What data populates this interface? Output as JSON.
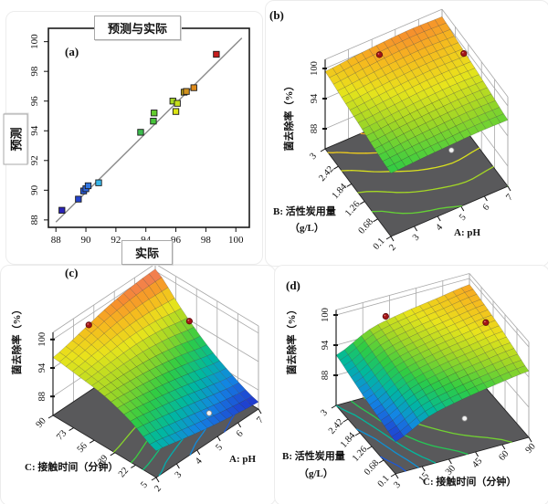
{
  "colors": {
    "floor": "#59595b",
    "mesh_line": "#3a3a3a",
    "red_dot": "#a31616",
    "red_dot_edge": "#5c0c0c",
    "white_dot": "#f2f2f2",
    "axis_line": "#1a1a1a",
    "wall_line": "#a8a8a8",
    "identity_line": "#8a8a8a",
    "colormap_stops": [
      [
        0,
        "#2233cc"
      ],
      [
        0.15,
        "#1385e4"
      ],
      [
        0.3,
        "#00b8a0"
      ],
      [
        0.45,
        "#2ecc44"
      ],
      [
        0.6,
        "#9ed626"
      ],
      [
        0.72,
        "#e8e41c"
      ],
      [
        0.84,
        "#f6b81e"
      ],
      [
        0.93,
        "#f68c2e"
      ],
      [
        1,
        "#ef7568"
      ]
    ]
  },
  "chart_data": [
    {
      "id": "a",
      "type": "scatter",
      "tag": "(a)",
      "title": "预测与实际",
      "xlabel": "实际",
      "ylabel": "预测",
      "xlim": [
        87.5,
        100.9
      ],
      "ylim": [
        87.5,
        100.9
      ],
      "xticks": [
        88,
        90,
        92,
        94,
        96,
        98,
        100
      ],
      "yticks": [
        88,
        90,
        92,
        94,
        96,
        98,
        100
      ],
      "identity_line": {
        "x1": 88.0,
        "y1": 87.85,
        "x2": 100.4,
        "y2": 100.25
      },
      "points": [
        {
          "x": 88.4,
          "y": 88.65,
          "color": "#2a23b8"
        },
        {
          "x": 89.5,
          "y": 89.4,
          "color": "#2443cc"
        },
        {
          "x": 89.85,
          "y": 89.95,
          "color": "#2a5ad8"
        },
        {
          "x": 90.0,
          "y": 90.1,
          "color": "#2e66dc"
        },
        {
          "x": 90.15,
          "y": 90.3,
          "color": "#3377e2"
        },
        {
          "x": 90.85,
          "y": 90.5,
          "color": "#39b6e9"
        },
        {
          "x": 93.65,
          "y": 93.9,
          "color": "#3cbb4e"
        },
        {
          "x": 94.5,
          "y": 94.65,
          "color": "#47c43a"
        },
        {
          "x": 94.55,
          "y": 95.2,
          "color": "#63cc2e"
        },
        {
          "x": 95.8,
          "y": 96.0,
          "color": "#a6d822"
        },
        {
          "x": 96.1,
          "y": 95.85,
          "color": "#c6de1a"
        },
        {
          "x": 96.0,
          "y": 95.3,
          "color": "#dce414"
        },
        {
          "x": 96.55,
          "y": 96.6,
          "color": "#c2a81c"
        },
        {
          "x": 96.7,
          "y": 96.65,
          "color": "#d1921e"
        },
        {
          "x": 97.2,
          "y": 96.9,
          "color": "#de8a1a"
        },
        {
          "x": 98.7,
          "y": 99.15,
          "color": "#c81f1f"
        }
      ]
    },
    {
      "id": "b",
      "type": "surface3d",
      "tag": "(b)",
      "zlabel": "菌去除率（%）",
      "zticks": [
        88,
        94,
        100
      ],
      "right_axis": {
        "label": "A: pH",
        "ticks": [
          "2",
          "3",
          "4",
          "5",
          "6",
          "7"
        ]
      },
      "left_axis": {
        "label": "B: 活性炭用量",
        "label_line2": "（g/L）",
        "ticks": [
          "3",
          "2.42",
          "1.84",
          "1.26",
          "0.68",
          "0.1"
        ]
      },
      "z_grid": [
        [
          99.4,
          99.9,
          100.3,
          100.5,
          100.3
        ],
        [
          98.6,
          99.1,
          99.5,
          99.7,
          99.5
        ],
        [
          97.9,
          98.3,
          98.7,
          98.9,
          98.8
        ],
        [
          97.1,
          97.6,
          97.9,
          98.1,
          98.0
        ],
        [
          96.6,
          96.9,
          97.1,
          97.3,
          97.2
        ]
      ],
      "contour_levels": [
        97.2,
        97.9,
        98.6,
        99.3,
        100.0
      ],
      "color_range": [
        0.45,
        0.93
      ],
      "red_dots": [
        {
          "u": 0.38,
          "v": 0.85
        },
        {
          "u": 0.95,
          "v": 0.58
        }
      ],
      "white_dot": {
        "u": 0.81,
        "v": 0.52
      }
    },
    {
      "id": "c",
      "type": "surface3d",
      "tag": "(c)",
      "zlabel": "菌去除率（%）",
      "zticks": [
        88,
        94,
        100
      ],
      "right_axis": {
        "label": "A: pH",
        "ticks": [
          "2",
          "3",
          "4",
          "5",
          "6",
          "7"
        ]
      },
      "left_axis": {
        "label": "C: 接触时间（分钟）",
        "ticks": [
          "90",
          "73",
          "56",
          "39",
          "22",
          "5"
        ]
      },
      "z_grid": [
        [
          96.2,
          97.5,
          99.0,
          100.0,
          100.4
        ],
        [
          95.5,
          96.1,
          96.6,
          96.3,
          95.4
        ],
        [
          94.6,
          94.2,
          93.5,
          92.4,
          91.0
        ],
        [
          92.6,
          91.6,
          90.4,
          89.0,
          87.8
        ],
        [
          89.6,
          88.4,
          87.2,
          86.2,
          85.5
        ]
      ],
      "contour_levels": [
        86.5,
        88,
        89.5,
        91,
        92.5,
        94
      ],
      "color_range": [
        0,
        1
      ],
      "red_dots": [
        {
          "u": 0.3,
          "v": 0.95
        },
        {
          "u": 0.95,
          "v": 0.62
        }
      ],
      "white_dot": {
        "u": 0.74,
        "v": 0.22
      }
    },
    {
      "id": "d",
      "type": "surface3d",
      "tag": "(d)",
      "zlabel": "菌去除率（%）",
      "zticks": [
        88,
        94,
        100
      ],
      "right_axis": {
        "label": "C: 接触时间（分钟）",
        "ticks": [
          "3",
          "15",
          "30",
          "45",
          "60",
          "90"
        ]
      },
      "left_axis": {
        "label": "B: 活性炭用量",
        "label_line2": "（g/L）",
        "ticks": [
          "3",
          "2.42",
          "1.84",
          "1.26",
          "0.68",
          "0.1"
        ]
      },
      "z_grid": [
        [
          92.0,
          95.3,
          96.8,
          97.8,
          98.8
        ],
        [
          91.0,
          94.5,
          96.1,
          97.2,
          98.2
        ],
        [
          90.0,
          93.6,
          95.3,
          96.4,
          97.4
        ],
        [
          89.2,
          92.6,
          94.3,
          95.4,
          96.3
        ],
        [
          88.4,
          91.6,
          93.2,
          94.3,
          95.2
        ]
      ],
      "contour_levels": [
        89.2,
        90.6,
        92.0,
        93.4,
        94.8
      ],
      "color_range": [
        0,
        0.88
      ],
      "red_dots": [
        {
          "u": 0.35,
          "v": 0.95
        },
        {
          "u": 0.9,
          "v": 0.5
        }
      ],
      "white_dot": {
        "u": 0.71,
        "v": 0.43
      }
    }
  ]
}
